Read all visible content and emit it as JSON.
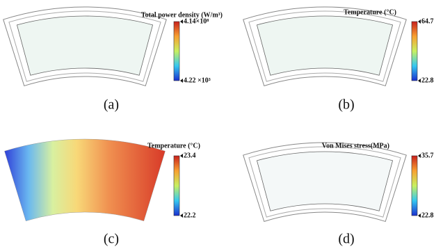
{
  "panels": [
    {
      "title": "Total power density (W/m³)",
      "max": "4.14×10⁸",
      "min": "4.22 ×10³",
      "caption": "(a)"
    },
    {
      "title": "Temperature (°C)",
      "max": "64.7",
      "min": "22.8",
      "caption": "(b)"
    },
    {
      "title": "Temperature (°C)",
      "max": "23.4",
      "min": "22.2",
      "caption": "(c)"
    },
    {
      "title": "Von Mises stress(MPa)",
      "max": "35.7",
      "min": "22.8",
      "caption": "(d)"
    }
  ]
}
